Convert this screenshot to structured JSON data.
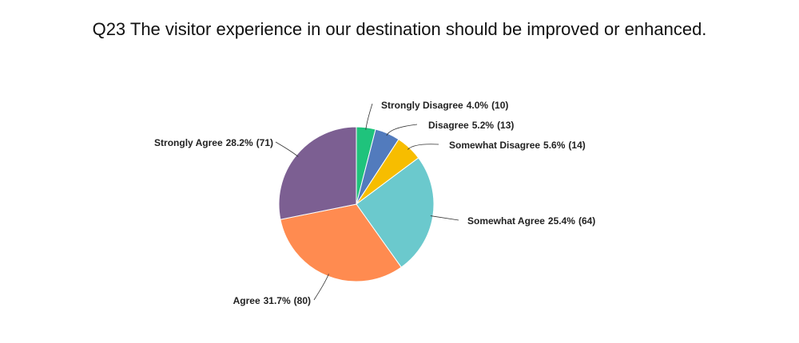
{
  "chart_data": {
    "type": "pie",
    "title": "Q23 The visitor experience in our destination should be improved or enhanced.",
    "categories": [
      "Strongly Disagree",
      "Disagree",
      "Somewhat Disagree",
      "Somewhat Agree",
      "Agree",
      "Strongly Agree"
    ],
    "values": [
      4.0,
      5.2,
      5.6,
      25.4,
      31.7,
      28.2
    ],
    "value_labels": [
      "4.0%",
      "5.2%",
      "5.6%",
      "25.4%",
      "31.7%",
      "28.2%"
    ],
    "count_labels": [
      "(10)",
      "(13)",
      "(14)",
      "(64)",
      "(80)",
      "(71)"
    ],
    "colors": [
      "#1fc37c",
      "#527bbd",
      "#f7bd00",
      "#6bc9cd",
      "#ff8b50",
      "#7c5f92"
    ]
  }
}
